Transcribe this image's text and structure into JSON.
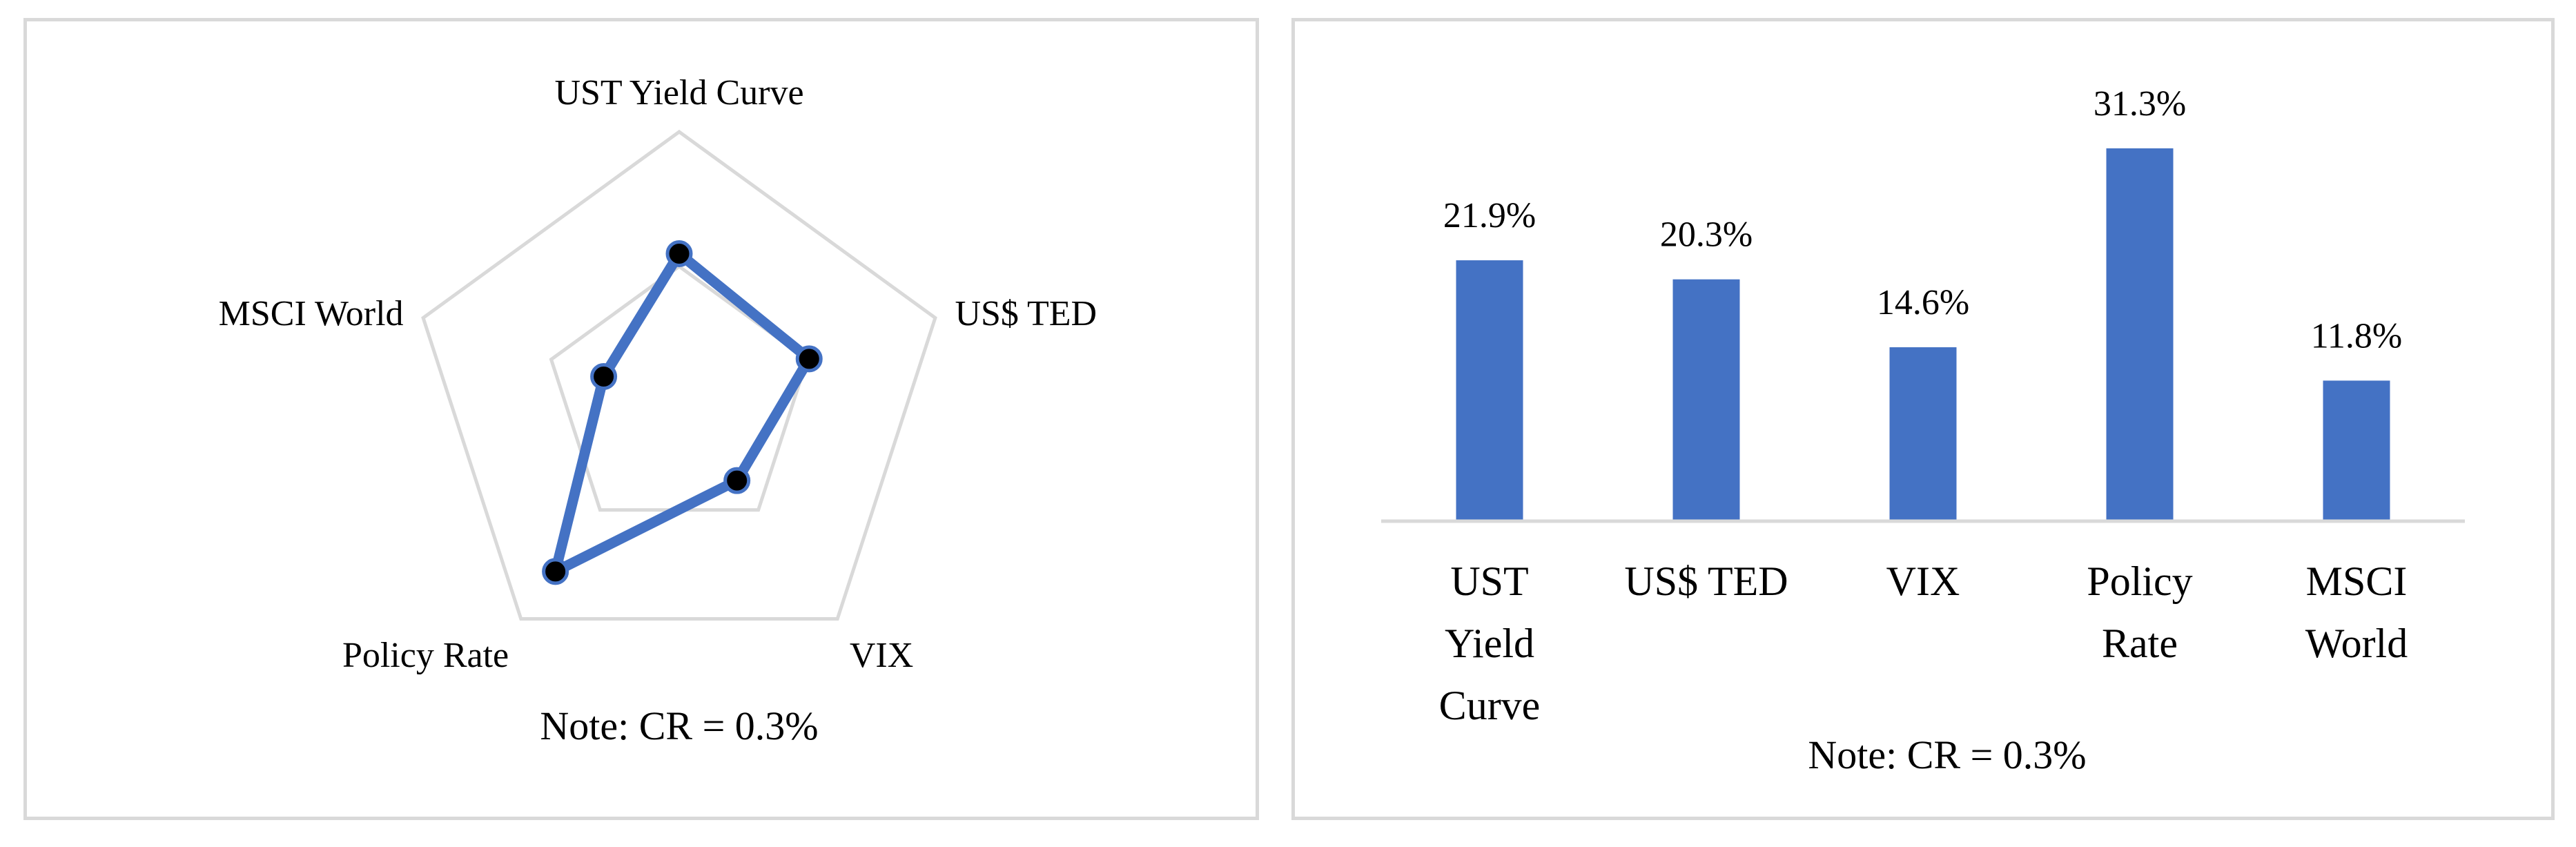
{
  "colors": {
    "series": "#4472c4",
    "marker": "#000000",
    "grid": "#d9d9d9",
    "axis": "#d9d9d9"
  },
  "chart_data": [
    {
      "type": "radar",
      "categories": [
        "UST Yield Curve",
        "US$ TED",
        "VIX",
        "Policy Rate",
        "MSCI World"
      ],
      "values": [
        21.9,
        20.3,
        14.6,
        31.3,
        11.8
      ],
      "rlim": [
        0,
        40
      ],
      "grid_levels": [
        20,
        40
      ],
      "grid": true,
      "note": "Note: CR = 0.3%"
    },
    {
      "type": "bar",
      "categories": [
        "UST Yield Curve",
        "US$ TED",
        "VIX",
        "Policy Rate",
        "MSCI World"
      ],
      "category_lines": [
        [
          "UST",
          "Yield",
          "Curve"
        ],
        [
          "US$ TED"
        ],
        [
          "VIX"
        ],
        [
          "Policy",
          "Rate"
        ],
        [
          "MSCI",
          "World"
        ]
      ],
      "values": [
        21.9,
        20.3,
        14.6,
        31.3,
        11.8
      ],
      "data_labels": [
        "21.9%",
        "20.3%",
        "14.6%",
        "31.3%",
        "11.8%"
      ],
      "ylim": [
        0,
        35
      ],
      "grid": false,
      "note": "Note: CR = 0.3%"
    }
  ]
}
